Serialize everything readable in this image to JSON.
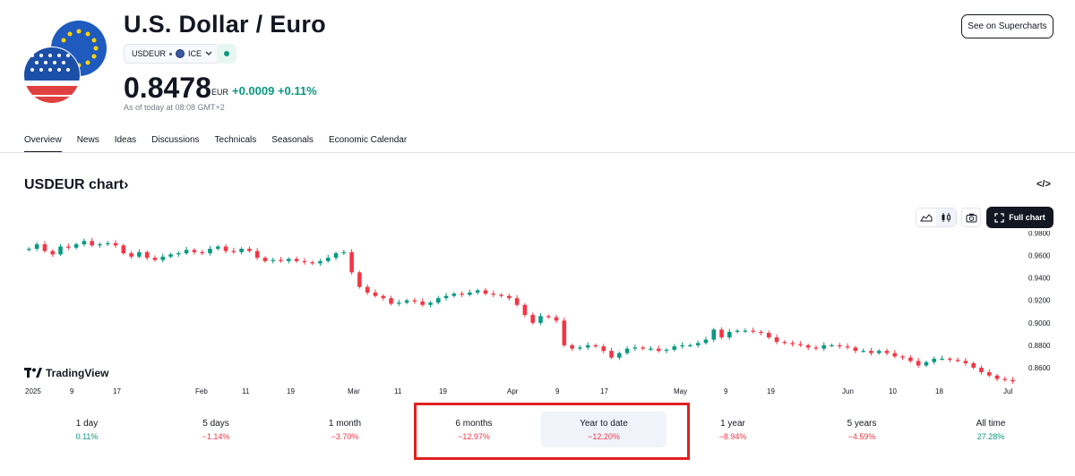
{
  "header": {
    "title": "U.S. Dollar / Euro",
    "ticker": "USDEUR",
    "exchange": "ICE",
    "price": "0.8478",
    "currency": "EUR",
    "change": "+0.0009 +0.11%",
    "as_of": "As of today at 08:08 GMT+2",
    "supercharts_label": "See on Supercharts"
  },
  "tabs": [
    {
      "label": "Overview",
      "active": true
    },
    {
      "label": "News"
    },
    {
      "label": "Ideas"
    },
    {
      "label": "Discussions"
    },
    {
      "label": "Technicals"
    },
    {
      "label": "Seasonals"
    },
    {
      "label": "Economic Calendar"
    }
  ],
  "chart_section": {
    "title": "USDEUR chart",
    "arrow": "›",
    "embed_icon": "</>",
    "full_chart_label": "Full chart",
    "logo_text": "TradingView"
  },
  "chart_data": {
    "type": "candlestick",
    "ylim": [
      0.848,
      0.982
    ],
    "yticks": [
      "0.9800",
      "0.9600",
      "0.9400",
      "0.9200",
      "0.9000",
      "0.8800",
      "0.8600"
    ],
    "xticks": [
      "2025",
      "9",
      "17",
      "Feb",
      "11",
      "19",
      "Mar",
      "11",
      "19",
      "Apr",
      "9",
      "17",
      "May",
      "9",
      "19",
      "Jun",
      "10",
      "18",
      "Jul"
    ],
    "closes": [
      0.966,
      0.97,
      0.964,
      0.961,
      0.968,
      0.967,
      0.97,
      0.973,
      0.969,
      0.97,
      0.971,
      0.969,
      0.962,
      0.959,
      0.963,
      0.958,
      0.956,
      0.959,
      0.961,
      0.962,
      0.965,
      0.963,
      0.962,
      0.966,
      0.968,
      0.964,
      0.963,
      0.966,
      0.964,
      0.958,
      0.955,
      0.956,
      0.955,
      0.957,
      0.955,
      0.954,
      0.953,
      0.955,
      0.958,
      0.962,
      0.963,
      0.945,
      0.932,
      0.927,
      0.924,
      0.922,
      0.917,
      0.918,
      0.92,
      0.919,
      0.916,
      0.918,
      0.922,
      0.924,
      0.926,
      0.925,
      0.927,
      0.929,
      0.926,
      0.925,
      0.924,
      0.922,
      0.916,
      0.907,
      0.9,
      0.906,
      0.905,
      0.902,
      0.88,
      0.877,
      0.878,
      0.88,
      0.879,
      0.875,
      0.869,
      0.873,
      0.877,
      0.878,
      0.877,
      0.877,
      0.875,
      0.876,
      0.879,
      0.88,
      0.88,
      0.882,
      0.885,
      0.894,
      0.887,
      0.892,
      0.893,
      0.893,
      0.892,
      0.891,
      0.887,
      0.883,
      0.882,
      0.881,
      0.88,
      0.878,
      0.877,
      0.88,
      0.88,
      0.879,
      0.878,
      0.875,
      0.875,
      0.873,
      0.875,
      0.873,
      0.87,
      0.869,
      0.866,
      0.862,
      0.865,
      0.868,
      0.868,
      0.867,
      0.866,
      0.864,
      0.86,
      0.856,
      0.853,
      0.85,
      0.849,
      0.8478
    ],
    "series": [
      {
        "name": "USDEUR"
      }
    ]
  },
  "periods": [
    {
      "label": "1 day",
      "value": "0.11%",
      "dir": "pos"
    },
    {
      "label": "5 days",
      "value": "−1.14%",
      "dir": "neg"
    },
    {
      "label": "1 month",
      "value": "−3.70%",
      "dir": "neg"
    },
    {
      "label": "6 months",
      "value": "−12.97%",
      "dir": "neg"
    },
    {
      "label": "Year to date",
      "value": "−12.20%",
      "dir": "neg",
      "selected": true
    },
    {
      "label": "1 year",
      "value": "−8.94%",
      "dir": "neg"
    },
    {
      "label": "5 years",
      "value": "−4.59%",
      "dir": "neg"
    },
    {
      "label": "All time",
      "value": "27.28%",
      "dir": "pos"
    }
  ],
  "colors": {
    "up": "#089981",
    "down": "#f23645",
    "highlight": "#e02020"
  }
}
